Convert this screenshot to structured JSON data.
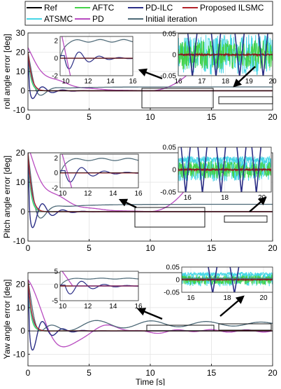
{
  "legend": {
    "items": [
      {
        "label": "Ref",
        "color": "#000000"
      },
      {
        "label": "AFTC",
        "color": "#44d24a"
      },
      {
        "label": "PD-ILC",
        "color": "#2b2e86"
      },
      {
        "label": "Proposed ILSMC",
        "color": "#b2222a"
      },
      {
        "label": "ATSMC",
        "color": "#46d6e6"
      },
      {
        "label": "PD",
        "color": "#b84bc0"
      },
      {
        "label": "Initial iteration",
        "color": "#4e6a78"
      }
    ]
  },
  "chart_data": [
    {
      "type": "line",
      "ylabel": "roll angle error [deg]",
      "xlim": [
        0,
        20
      ],
      "ylim": [
        -10,
        30
      ],
      "xticks": [
        "0",
        "5",
        "10",
        "15",
        "20"
      ],
      "yticks": [
        "-10",
        "0",
        "10",
        "20",
        "30"
      ],
      "insets": [
        {
          "xlim": [
            9.5,
            16
          ],
          "ylim": [
            -2,
            2.5
          ],
          "xticks": [
            "10",
            "12",
            "14",
            "16"
          ],
          "yticks": [
            "-2",
            "0",
            "2"
          ],
          "initial_level": 2,
          "pd_rise": true
        },
        {
          "xlim": [
            16,
            20
          ],
          "ylim": [
            -0.05,
            0.05
          ],
          "xticks": [
            "16",
            "17",
            "18",
            "19",
            "20"
          ],
          "yticks": [
            "-0.05",
            "0",
            "0.05"
          ],
          "pdilc_spikes": [
            16.6,
            17.6,
            18.6,
            19.6
          ]
        }
      ]
    },
    {
      "type": "line",
      "ylabel": "Pitch angle error [deg]",
      "xlim": [
        0,
        20
      ],
      "ylim": [
        -10,
        20
      ],
      "xticks": [
        "0",
        "5",
        "10",
        "15",
        "20"
      ],
      "yticks": [
        "-10",
        "0",
        "10",
        "20"
      ],
      "insets": [
        {
          "xlim": [
            9.8,
            16
          ],
          "ylim": [
            -2,
            2.5
          ],
          "xticks": [
            "10",
            "12",
            "14",
            "16"
          ],
          "yticks": [
            "-2",
            "0",
            "2"
          ],
          "initial_level": 1.8,
          "pd_rise": true
        },
        {
          "xlim": [
            15.5,
            20.5
          ],
          "ylim": [
            -0.05,
            0.05
          ],
          "xticks": [
            "16",
            "18",
            "20"
          ],
          "yticks": [
            "-0.05",
            "0",
            "0.05"
          ],
          "pdilc_spikes": [
            15.9,
            16.8,
            17.8,
            18.9,
            19.7
          ]
        }
      ]
    },
    {
      "type": "line",
      "ylabel": "Yaw angle error [deg]",
      "xlabel": "Time [s]",
      "xlim": [
        0,
        20
      ],
      "ylim": [
        -15,
        25
      ],
      "xticks": [
        "0",
        "5",
        "10",
        "15",
        "20"
      ],
      "yticks": [
        "-10",
        "0",
        "10",
        "20"
      ],
      "insets": [
        {
          "xlim": [
            9.8,
            16
          ],
          "ylim": [
            -5,
            5
          ],
          "xticks": [
            "10",
            "12",
            "14",
            "16"
          ],
          "yticks": [
            "-5",
            "0",
            "5"
          ],
          "initial_level": 2.5,
          "pd_rise": true
        },
        {
          "xlim": [
            15.5,
            20.5
          ],
          "ylim": [
            -0.05,
            0.05
          ],
          "xticks": [
            "16",
            "18",
            "20"
          ],
          "yticks": [
            "-0.05",
            "0",
            "0.05"
          ],
          "pdilc_spikes": [
            17.2,
            18.4
          ]
        }
      ]
    }
  ]
}
